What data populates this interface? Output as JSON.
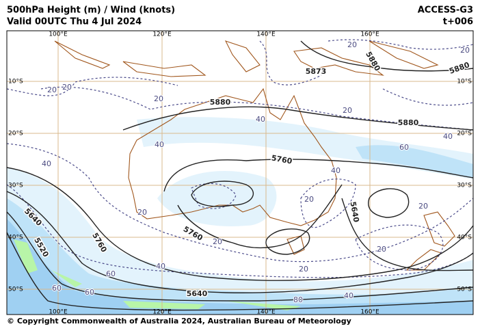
{
  "header": {
    "title": "500hPa Height (m) / Wind (knots)",
    "valid": "Valid 00UTC Thu 4 Jul 2024",
    "model": "ACCESS-G3",
    "step": "t+006"
  },
  "lon_labels": [
    "100°E",
    "120°E",
    "140°E",
    "160°E"
  ],
  "lat_labels": [
    "10°S",
    "20°S",
    "30°S",
    "40°S",
    "50°S"
  ],
  "height_labels": [
    "5873",
    "5880",
    "5880",
    "5880",
    "5880",
    "5760",
    "5760",
    "5760",
    "5640",
    "5640",
    "5640",
    "5520"
  ],
  "wind_labels": [
    "20",
    "20",
    "20",
    "20",
    "20",
    "20",
    "20",
    "20",
    "20",
    "20",
    "20",
    "20",
    "40",
    "40",
    "40",
    "40",
    "40",
    "40",
    "40",
    "60",
    "60",
    "60",
    "60",
    "80"
  ],
  "footer": "© Copyright Commonwealth of Australia 2024, Australian Bureau of Meteorology"
}
